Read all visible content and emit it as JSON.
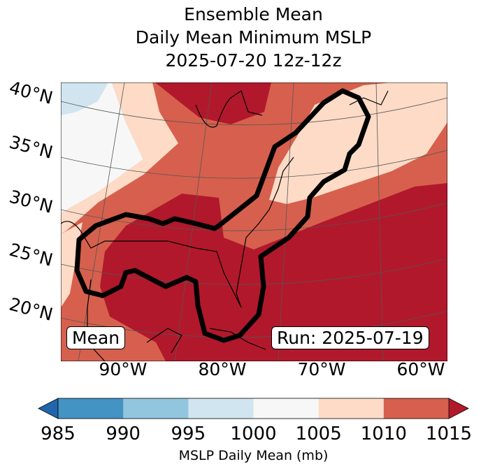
{
  "title": [
    "Ensemble Mean",
    "Daily Mean Minimum MSLP",
    "2025-07-20 12z-12z"
  ],
  "map": {
    "lat_labels": [
      "40°N",
      "35°N",
      "30°N",
      "25°N",
      "20°N"
    ],
    "lon_labels": [
      "90°W",
      "80°W",
      "70°W",
      "60°W"
    ],
    "left_box": "Mean",
    "right_box": "Run: 2025-07-19",
    "contour_color": "#000000"
  },
  "chart_data": {
    "type": "heatmap",
    "title": "Ensemble Mean Daily Mean Minimum MSLP 2025-07-20 12z-12z",
    "colorbar": {
      "label": "MSLP Daily Mean (mb)",
      "ticks": [
        "985",
        "990",
        "995",
        "1000",
        "1005",
        "1010",
        "1015"
      ],
      "levels": [
        985,
        990,
        995,
        1000,
        1005,
        1010,
        1015
      ],
      "colors": [
        "#4393c3",
        "#92c5de",
        "#d1e5f0",
        "#f7f7f7",
        "#fddbc7",
        "#d6604d"
      ],
      "under_color": "#2166ac",
      "over_color": "#b2182b",
      "extend": "both"
    }
  }
}
